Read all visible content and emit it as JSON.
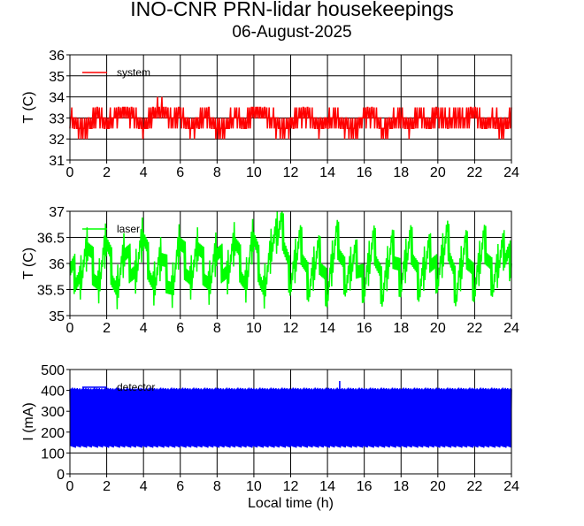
{
  "header": {
    "title": "INO-CNR PRN-lidar housekeepings",
    "date": "06-August-2025"
  },
  "chart_data": [
    {
      "type": "line",
      "panel": "top",
      "ylabel": "T (C)",
      "xlabel": "",
      "xlim": [
        0,
        24
      ],
      "ylim": [
        31,
        36
      ],
      "xticks": [
        "0",
        "2",
        "4",
        "6",
        "8",
        "10",
        "12",
        "14",
        "16",
        "18",
        "20",
        "22",
        "24"
      ],
      "yticks": [
        "31",
        "32",
        "33",
        "34",
        "35",
        "36"
      ],
      "grid": true,
      "legend_position": "top-left",
      "series": [
        {
          "name": "system",
          "color": "#ff0000",
          "pattern": "step noise, mostly 32-33.5 C, brief spike to about 35.5 C near x=0",
          "x": [
            0,
            0.5,
            1,
            1.5,
            2,
            2.5,
            3,
            3.5,
            4,
            4.5,
            5,
            5.5,
            6,
            6.5,
            7,
            7.5,
            8,
            8.5,
            9,
            9.5,
            10,
            10.5,
            11,
            11.5,
            12,
            12.5,
            13,
            13.5,
            14,
            14.5,
            15,
            15.5,
            16,
            16.5,
            17,
            17.5,
            18,
            18.5,
            19,
            19.5,
            20,
            20.5,
            21,
            21.5,
            22,
            22.5,
            23,
            23.5,
            24
          ],
          "values": [
            33.0,
            32.4,
            32.6,
            33.2,
            32.7,
            33.1,
            33.3,
            33.0,
            32.4,
            33.2,
            33.4,
            32.9,
            33.2,
            32.5,
            32.8,
            33.2,
            32.4,
            32.6,
            33.1,
            32.7,
            33.3,
            33.2,
            32.9,
            32.4,
            32.7,
            33.1,
            33.2,
            32.6,
            32.8,
            33.0,
            32.6,
            32.5,
            33.1,
            33.2,
            32.4,
            32.8,
            33.0,
            32.6,
            33.1,
            32.7,
            33.2,
            32.8,
            33.1,
            32.9,
            33.3,
            32.6,
            33.0,
            32.5,
            33.0
          ]
        }
      ]
    },
    {
      "type": "line",
      "panel": "middle",
      "ylabel": "T (C)",
      "xlabel": "",
      "xlim": [
        0,
        24
      ],
      "ylim": [
        35,
        37
      ],
      "xticks": [
        "0",
        "2",
        "4",
        "6",
        "8",
        "10",
        "12",
        "14",
        "16",
        "18",
        "20",
        "22",
        "24"
      ],
      "yticks": [
        "35",
        "35.5",
        "36",
        "36.5",
        "37"
      ],
      "grid": true,
      "legend_position": "top-left",
      "series": [
        {
          "name": "laser",
          "color": "#00ff00",
          "pattern": "dense oscillation between about 35.25 and 36.8 C",
          "x": [
            0,
            0.5,
            1,
            1.5,
            2,
            2.5,
            3,
            3.5,
            4,
            4.5,
            5,
            5.5,
            6,
            6.5,
            7,
            7.5,
            8,
            8.5,
            9,
            9.5,
            10,
            10.5,
            11,
            11.5,
            12,
            12.5,
            13,
            13.5,
            14,
            14.5,
            15,
            15.5,
            16,
            16.5,
            17,
            17.5,
            18,
            18.5,
            19,
            19.5,
            20,
            20.5,
            21,
            21.5,
            22,
            22.5,
            23,
            23.5,
            24
          ],
          "values": [
            36.0,
            35.6,
            36.4,
            35.5,
            36.5,
            35.4,
            36.3,
            35.7,
            36.6,
            35.5,
            36.2,
            35.4,
            36.5,
            35.6,
            36.4,
            35.5,
            36.3,
            35.7,
            36.5,
            35.5,
            36.6,
            35.4,
            36.4,
            36.8,
            35.6,
            36.5,
            35.5,
            36.3,
            35.4,
            36.6,
            35.6,
            36.2,
            35.5,
            36.5,
            35.4,
            36.4,
            35.6,
            36.5,
            35.5,
            36.3,
            35.7,
            36.6,
            35.4,
            36.4,
            35.5,
            36.5,
            35.6,
            36.3,
            36.0
          ]
        }
      ]
    },
    {
      "type": "line",
      "panel": "bottom",
      "ylabel": "I (mA)",
      "xlabel": "Local time (h)",
      "xlim": [
        0,
        24
      ],
      "ylim": [
        0,
        500
      ],
      "xticks": [
        "0",
        "2",
        "4",
        "6",
        "8",
        "10",
        "12",
        "14",
        "16",
        "18",
        "20",
        "22",
        "24"
      ],
      "yticks": [
        "0",
        "100",
        "200",
        "300",
        "400",
        "500"
      ],
      "grid": true,
      "legend_position": "top-left",
      "series": [
        {
          "name": "detector",
          "color": "#0000ff",
          "pattern": "filled band oscillating between about 120 and 410 mA, peaks up to about 450 mA",
          "x": [
            0,
            0.5,
            1,
            1.5,
            2,
            2.5,
            3,
            3.5,
            4,
            4.5,
            5,
            5.5,
            6,
            6.5,
            7,
            7.5,
            8,
            8.5,
            9,
            9.5,
            10,
            10.5,
            11,
            11.5,
            12,
            12.5,
            13,
            13.5,
            14,
            14.5,
            15,
            15.5,
            16,
            16.5,
            17,
            17.5,
            18,
            18.5,
            19,
            19.5,
            20,
            20.5,
            21,
            21.5,
            22,
            22.5,
            23,
            23.5,
            24
          ],
          "values": [
            400,
            130,
            410,
            125,
            405,
            120,
            415,
            135,
            420,
            130,
            410,
            125,
            415,
            120,
            405,
            130,
            410,
            125,
            415,
            120,
            420,
            135,
            410,
            125,
            445,
            130,
            415,
            120,
            410,
            135,
            420,
            125,
            405,
            130,
            415,
            120,
            410,
            125,
            420,
            130,
            405,
            120,
            415,
            125,
            410,
            130,
            405,
            120,
            400
          ]
        }
      ]
    }
  ]
}
